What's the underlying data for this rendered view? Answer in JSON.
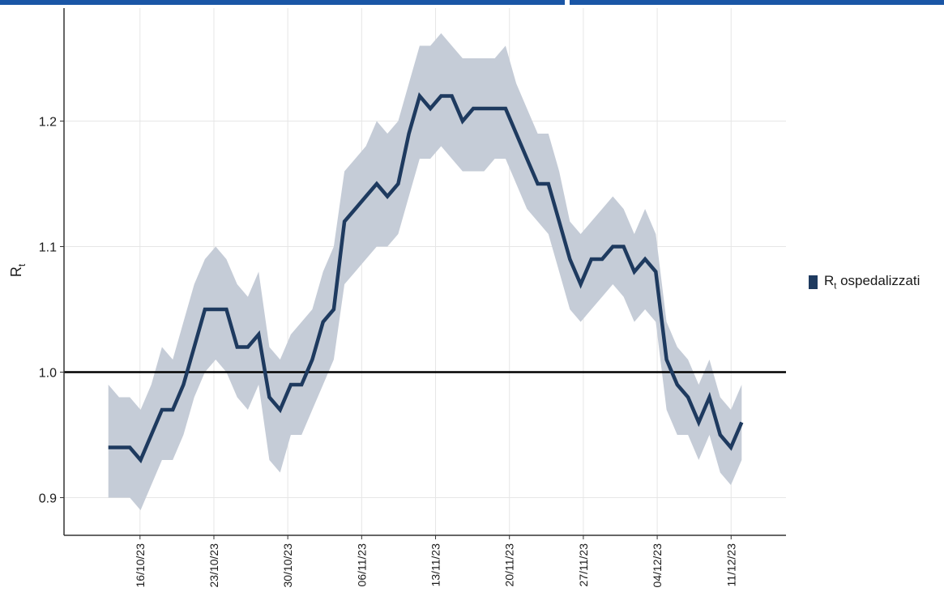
{
  "chart_data": {
    "type": "line",
    "ylabel": "R",
    "ylabel_sub": "t",
    "ylim": [
      0.87,
      1.29
    ],
    "y_ticks": [
      "0.9",
      "1.0",
      "1.1",
      "1.2"
    ],
    "x_ticks": [
      "16/10/23",
      "23/10/23",
      "30/10/23",
      "06/11/23",
      "13/11/23",
      "20/11/23",
      "27/11/23",
      "04/12/23",
      "11/12/23"
    ],
    "x_start": "13/10/23",
    "x_end": "12/12/23",
    "reference_line": 1.0,
    "grid": true,
    "legend_position": "right",
    "series": [
      {
        "name": "R",
        "name_sub": "t",
        "name_suffix": " ospedalizzati",
        "color": "#1e3a5f",
        "ribbon_color": "#c5ccd7",
        "values": [
          0.94,
          0.94,
          0.94,
          0.93,
          0.95,
          0.97,
          0.97,
          0.99,
          1.02,
          1.05,
          1.05,
          1.05,
          1.02,
          1.02,
          1.03,
          0.98,
          0.97,
          0.99,
          0.99,
          1.01,
          1.04,
          1.05,
          1.12,
          1.13,
          1.14,
          1.15,
          1.14,
          1.15,
          1.19,
          1.22,
          1.21,
          1.22,
          1.22,
          1.2,
          1.21,
          1.21,
          1.21,
          1.21,
          1.19,
          1.17,
          1.15,
          1.15,
          1.12,
          1.09,
          1.07,
          1.09,
          1.09,
          1.1,
          1.1,
          1.08,
          1.09,
          1.08,
          1.01,
          0.99,
          0.98,
          0.96,
          0.98,
          0.95,
          0.94,
          0.96
        ],
        "lower": [
          0.9,
          0.9,
          0.9,
          0.89,
          0.91,
          0.93,
          0.93,
          0.95,
          0.98,
          1.0,
          1.01,
          1.0,
          0.98,
          0.97,
          0.99,
          0.93,
          0.92,
          0.95,
          0.95,
          0.97,
          0.99,
          1.01,
          1.07,
          1.08,
          1.09,
          1.1,
          1.1,
          1.11,
          1.14,
          1.17,
          1.17,
          1.18,
          1.17,
          1.16,
          1.16,
          1.16,
          1.17,
          1.17,
          1.15,
          1.13,
          1.12,
          1.11,
          1.08,
          1.05,
          1.04,
          1.05,
          1.06,
          1.07,
          1.06,
          1.04,
          1.05,
          1.04,
          0.97,
          0.95,
          0.95,
          0.93,
          0.95,
          0.92,
          0.91,
          0.93
        ],
        "upper": [
          0.99,
          0.98,
          0.98,
          0.97,
          0.99,
          1.02,
          1.01,
          1.04,
          1.07,
          1.09,
          1.1,
          1.09,
          1.07,
          1.06,
          1.08,
          1.02,
          1.01,
          1.03,
          1.04,
          1.05,
          1.08,
          1.1,
          1.16,
          1.17,
          1.18,
          1.2,
          1.19,
          1.2,
          1.23,
          1.26,
          1.26,
          1.27,
          1.26,
          1.25,
          1.25,
          1.25,
          1.25,
          1.26,
          1.23,
          1.21,
          1.19,
          1.19,
          1.16,
          1.12,
          1.11,
          1.12,
          1.13,
          1.14,
          1.13,
          1.11,
          1.13,
          1.11,
          1.04,
          1.02,
          1.01,
          0.99,
          1.01,
          0.98,
          0.97,
          0.99
        ]
      }
    ]
  }
}
